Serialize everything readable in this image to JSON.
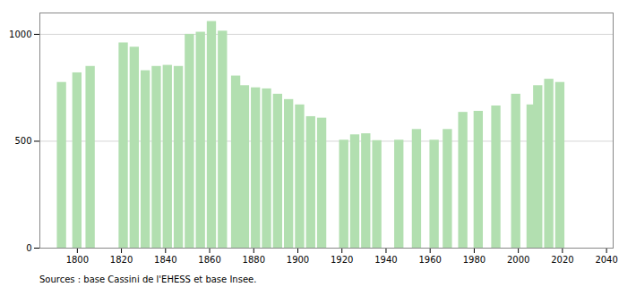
{
  "chart_data": {
    "type": "bar",
    "x": [
      1793,
      1800,
      1806,
      1821,
      1826,
      1831,
      1836,
      1841,
      1846,
      1851,
      1856,
      1861,
      1866,
      1872,
      1876,
      1881,
      1886,
      1891,
      1896,
      1901,
      1906,
      1911,
      1921,
      1926,
      1931,
      1936,
      1946,
      1954,
      1962,
      1968,
      1975,
      1982,
      1990,
      1999,
      2006,
      2009,
      2014,
      2019
    ],
    "values": [
      775,
      820,
      850,
      960,
      940,
      830,
      850,
      855,
      850,
      1000,
      1010,
      1060,
      1015,
      805,
      760,
      750,
      745,
      720,
      695,
      670,
      615,
      608,
      505,
      530,
      535,
      503,
      505,
      555,
      505,
      555,
      635,
      640,
      665,
      720,
      670,
      760,
      790,
      775
    ],
    "color": "#b2dfb0",
    "xlim": [
      1783,
      2043
    ],
    "ylim": [
      0,
      1100
    ],
    "xticks": [
      1800,
      1820,
      1840,
      1860,
      1880,
      1900,
      1920,
      1940,
      1960,
      1980,
      2000,
      2020,
      2040
    ],
    "yticks": [
      0,
      500,
      1000
    ],
    "grid": true,
    "caption": "Sources : base Cassini de l'EHESS et base Insee."
  }
}
